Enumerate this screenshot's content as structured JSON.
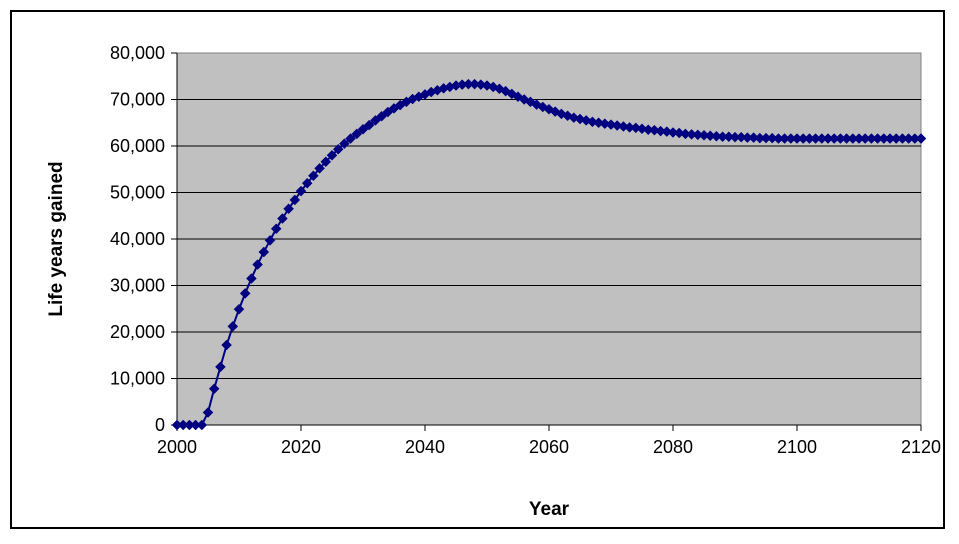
{
  "chart_data": {
    "type": "line",
    "title": "",
    "xlabel": "Year",
    "ylabel": "Life years gained",
    "xlim": [
      2000,
      2120
    ],
    "ylim": [
      0,
      80000
    ],
    "xticks": [
      2000,
      2020,
      2040,
      2060,
      2080,
      2100,
      2120
    ],
    "yticks": [
      0,
      10000,
      20000,
      30000,
      40000,
      50000,
      60000,
      70000,
      80000
    ],
    "ytick_labels": [
      "0",
      "10,000",
      "20,000",
      "30,000",
      "40,000",
      "50,000",
      "60,000",
      "70,000",
      "80,000"
    ],
    "grid": "horizontal",
    "legend": "none",
    "colors": {
      "plot_background": "#c0c0c0",
      "series": "#000080",
      "gridline": "#000000"
    },
    "marker": "diamond",
    "series": [
      {
        "x": [
          2000,
          2001,
          2002,
          2003,
          2004,
          2005,
          2006,
          2007,
          2008,
          2009,
          2010,
          2011,
          2012,
          2013,
          2014,
          2015,
          2016,
          2017,
          2018,
          2019,
          2020,
          2021,
          2022,
          2023,
          2024,
          2025,
          2026,
          2027,
          2028,
          2029,
          2030,
          2031,
          2032,
          2033,
          2034,
          2035,
          2036,
          2037,
          2038,
          2039,
          2040,
          2041,
          2042,
          2043,
          2044,
          2045,
          2046,
          2047,
          2048,
          2049,
          2050,
          2051,
          2052,
          2053,
          2054,
          2055,
          2056,
          2057,
          2058,
          2059,
          2060,
          2061,
          2062,
          2063,
          2064,
          2065,
          2066,
          2067,
          2068,
          2069,
          2070,
          2071,
          2072,
          2073,
          2074,
          2075,
          2076,
          2077,
          2078,
          2079,
          2080,
          2081,
          2082,
          2083,
          2084,
          2085,
          2086,
          2087,
          2088,
          2089,
          2090,
          2091,
          2092,
          2093,
          2094,
          2095,
          2096,
          2097,
          2098,
          2099,
          2100,
          2101,
          2102,
          2103,
          2104,
          2105,
          2106,
          2107,
          2108,
          2109,
          2110,
          2111,
          2112,
          2113,
          2114,
          2115,
          2116,
          2117,
          2118,
          2119,
          2120
        ],
        "values": [
          0,
          0,
          0,
          0,
          0,
          2700,
          7800,
          12500,
          17200,
          21200,
          24900,
          28300,
          31500,
          34500,
          37200,
          39700,
          42200,
          44400,
          46500,
          48400,
          50300,
          52000,
          53600,
          55200,
          56600,
          58000,
          59300,
          60500,
          61600,
          62600,
          63600,
          64500,
          65500,
          66400,
          67300,
          68100,
          68800,
          69500,
          70100,
          70600,
          71100,
          71600,
          72000,
          72400,
          72700,
          73000,
          73200,
          73300,
          73300,
          73200,
          73000,
          72700,
          72300,
          71800,
          71200,
          70600,
          70000,
          69500,
          68900,
          68400,
          67900,
          67400,
          66900,
          66500,
          66100,
          65800,
          65500,
          65200,
          65000,
          64800,
          64600,
          64400,
          64200,
          64000,
          63900,
          63700,
          63500,
          63400,
          63200,
          63100,
          62900,
          62800,
          62600,
          62500,
          62400,
          62300,
          62200,
          62100,
          62000,
          62000,
          61900,
          61900,
          61800,
          61800,
          61700,
          61700,
          61700,
          61600,
          61600,
          61600,
          61600,
          61600,
          61600,
          61600,
          61600,
          61600,
          61600,
          61600,
          61600,
          61600,
          61600,
          61600,
          61600,
          61600,
          61600,
          61600,
          61600,
          61600,
          61600,
          61600,
          61600
        ]
      }
    ]
  }
}
